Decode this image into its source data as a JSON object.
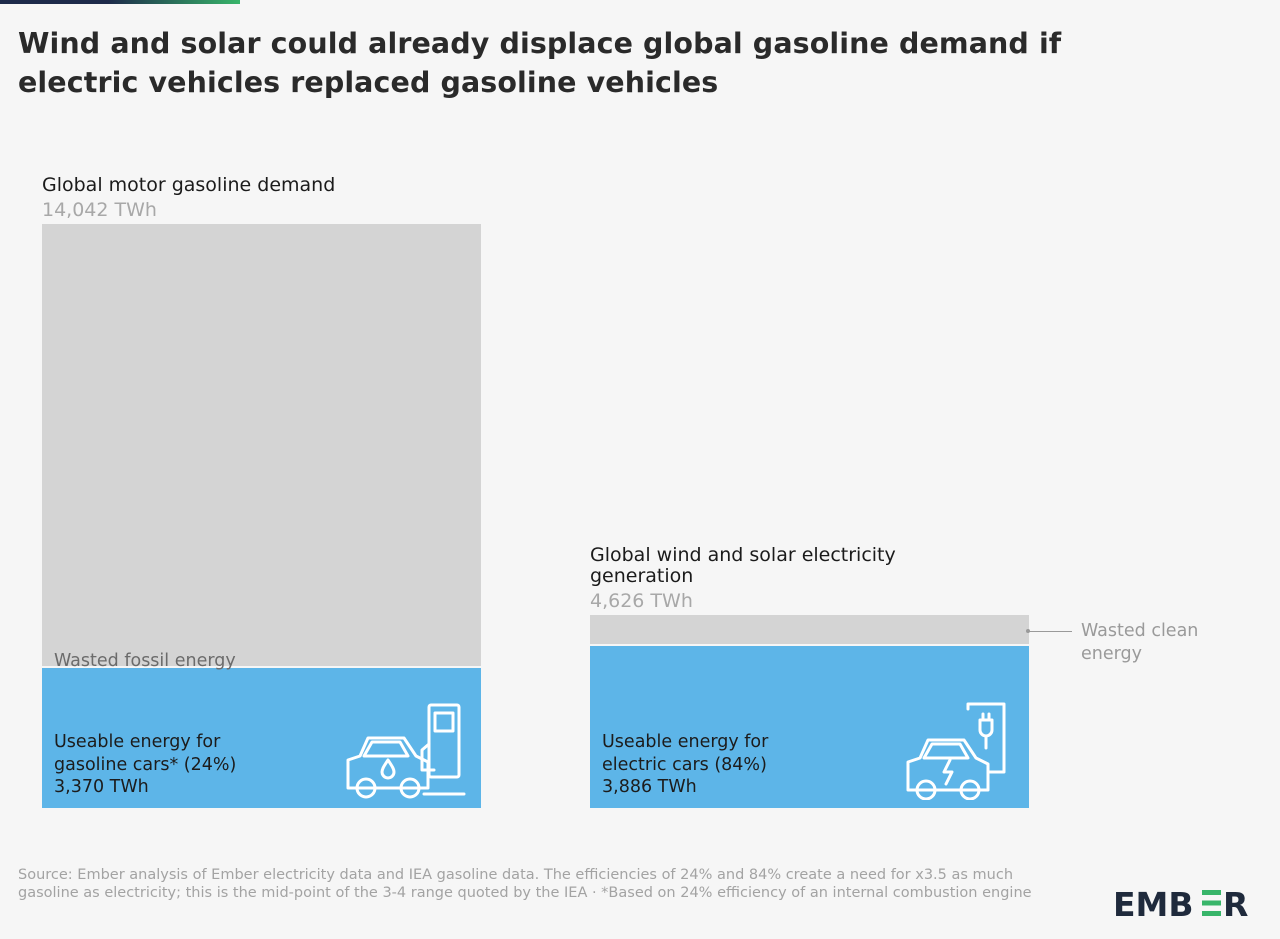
{
  "title": "Wind and solar could already displace global gasoline demand if electric vehicles replaced gasoline vehicles",
  "chart_data": {
    "type": "bar",
    "stacked": true,
    "categories": [
      "Global motor gasoline demand",
      "Global wind and solar electricity generation"
    ],
    "category_values_text": [
      "14,042 TWh",
      "4,626 TWh"
    ],
    "totals": [
      14042,
      4626
    ],
    "unit": "TWh",
    "series": [
      {
        "name": "Useable energy",
        "values": [
          3370,
          3886
        ],
        "color": "#5db5e8",
        "labels": [
          [
            "Useable energy for",
            "gasoline cars* (24%)",
            "3,370 TWh"
          ],
          [
            "Useable energy for",
            "electric cars (84%)",
            "3,886 TWh"
          ]
        ]
      },
      {
        "name": "Wasted energy",
        "values": [
          10672,
          740
        ],
        "color": "#d4d4d4",
        "labels": [
          "Wasted fossil energy",
          "Wasted clean energy"
        ]
      }
    ],
    "annotation": [
      "Wasted clean",
      "energy"
    ],
    "legend": "none",
    "grid": false
  },
  "icons": [
    "gasoline-car-pump-icon",
    "electric-car-charger-icon"
  ],
  "colors": {
    "useable": "#5db5e8",
    "wasted": "#d4d4d4",
    "background": "#f6f6f6",
    "brand_dark": "#1d2a4a",
    "brand_green": "#38b56a"
  },
  "source": "Source: Ember analysis of Ember electricity data and IEA gasoline data. The efficiencies of 24% and 84% create a need for x3.5 as much gasoline as electricity; this is the mid-point of the 3-4 range quoted by the IEA · *Based on 24% efficiency of an internal combustion engine",
  "logo": {
    "text_left": "EMB",
    "text_right": "R"
  }
}
